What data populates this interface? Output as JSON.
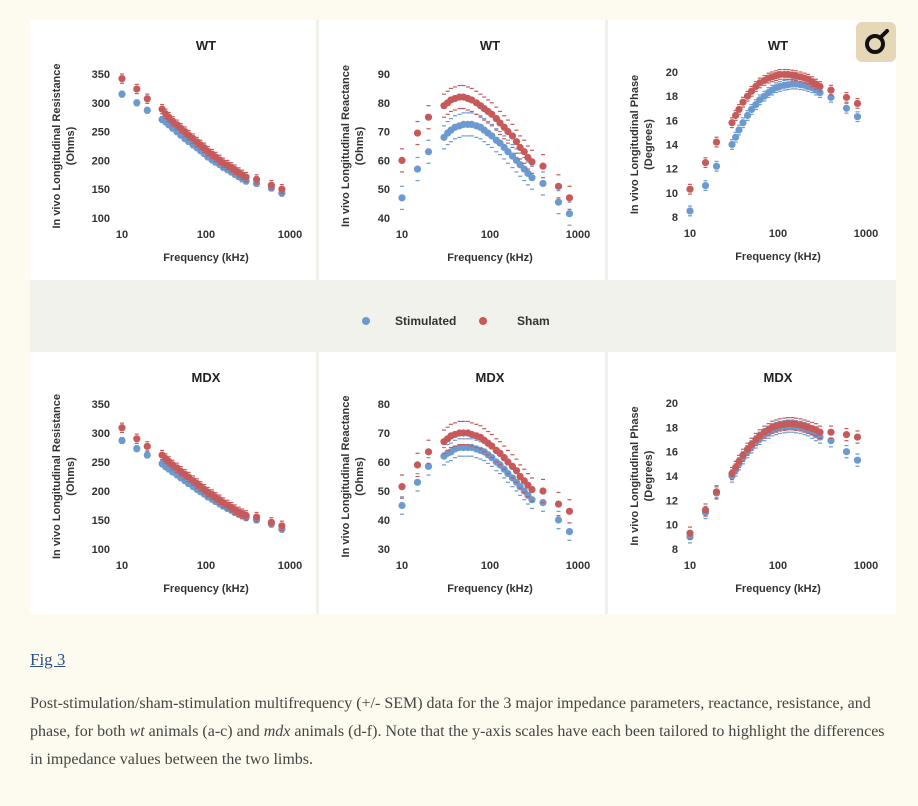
{
  "figure": {
    "legend": {
      "stimulated": "Stimulated",
      "sham": "Sham"
    },
    "colors": {
      "stimulated": "#6a9ad0",
      "sham": "#c65a5a"
    }
  },
  "badge": {
    "icon": "search-zoom-icon"
  },
  "caption": {
    "link": "Fig 3",
    "part1": "Post-stimulation/sham-stimulation multifrequency (+/- SEM) data for the 3 major impedance parameters, reactance, resistance, and phase, for both ",
    "wt": "wt",
    "part2": " animals (a-c) and ",
    "mdx": "mdx",
    "part3": " animals (d-f). Note that the y-axis scales have each been tailored to highlight the differences in impedance values between the two limbs."
  },
  "chart_data": [
    {
      "type": "scatter",
      "title": "WT",
      "xscale": "log",
      "xlim": [
        10,
        1000
      ],
      "xticks": [
        "10",
        "100",
        "1000"
      ],
      "xlabel": "Frequency (kHz)",
      "ylabel": "In vivo Longitudinal Resistance (Ohms)",
      "ylim": [
        100,
        350
      ],
      "yticks": [
        "100",
        "150",
        "200",
        "250",
        "300",
        "350"
      ],
      "x": [
        10,
        15,
        20,
        30,
        33,
        36,
        40,
        45,
        50,
        56,
        62,
        70,
        78,
        86,
        95,
        105,
        118,
        130,
        145,
        160,
        180,
        200,
        220,
        245,
        270,
        300,
        400,
        600,
        800
      ],
      "series": [
        {
          "name": "Stimulated",
          "error": 5,
          "values": [
            315,
            300,
            287,
            271,
            267,
            262,
            256,
            250,
            244,
            238,
            233,
            227,
            222,
            217,
            212,
            206,
            201,
            197,
            193,
            188,
            184,
            180,
            176,
            172,
            168,
            164,
            160,
            152,
            143
          ]
        },
        {
          "name": "Sham",
          "error": 8,
          "values": [
            342,
            324,
            307,
            289,
            281,
            275,
            268,
            262,
            256,
            250,
            244,
            238,
            232,
            227,
            222,
            216,
            211,
            206,
            201,
            196,
            192,
            188,
            184,
            179,
            175,
            171,
            167,
            157,
            150
          ]
        }
      ]
    },
    {
      "type": "scatter",
      "title": "WT",
      "xscale": "log",
      "xlim": [
        10,
        1000
      ],
      "xticks": [
        "10",
        "100",
        "1000"
      ],
      "xlabel": "Frequency (kHz)",
      "ylabel": "In vivo Longitudinal Reactance (Ohms)",
      "ylim": [
        40,
        90
      ],
      "yticks": [
        "40",
        "50",
        "60",
        "70",
        "80",
        "90"
      ],
      "x": [
        10,
        15,
        20,
        30,
        33,
        36,
        40,
        45,
        50,
        56,
        62,
        70,
        78,
        86,
        95,
        105,
        118,
        130,
        145,
        160,
        180,
        200,
        220,
        245,
        270,
        300,
        400,
        600,
        800
      ],
      "series": [
        {
          "name": "Stimulated",
          "error": 4,
          "values": [
            47,
            57,
            63,
            68,
            69.5,
            70.5,
            71.5,
            72,
            72.5,
            72.5,
            72.5,
            72,
            71.5,
            70.5,
            69.5,
            68.5,
            67,
            66,
            64.5,
            63,
            61.5,
            60,
            58.5,
            57,
            55.5,
            54,
            52,
            45.5,
            41.5
          ]
        },
        {
          "name": "Sham",
          "error": 4,
          "values": [
            60,
            69.5,
            75,
            79,
            80,
            81,
            81.5,
            82,
            82,
            81.5,
            81,
            80,
            79,
            78,
            77,
            76,
            74.5,
            73,
            71.5,
            70,
            68.5,
            66.5,
            64.5,
            63,
            61,
            59.5,
            58,
            51,
            47
          ]
        }
      ]
    },
    {
      "type": "scatter",
      "title": "WT",
      "xscale": "log",
      "xlim": [
        10,
        1000
      ],
      "xticks": [
        "10",
        "100",
        "1000"
      ],
      "xlabel": "Frequency (kHz)",
      "ylabel": "In vivo Longitudinal Phase (Degrees)",
      "ylim": [
        8,
        20
      ],
      "yticks": [
        "8",
        "10",
        "12",
        "14",
        "16",
        "18",
        "20"
      ],
      "x": [
        10,
        15,
        20,
        30,
        33,
        36,
        40,
        45,
        50,
        56,
        62,
        70,
        78,
        86,
        95,
        105,
        118,
        130,
        145,
        160,
        180,
        200,
        220,
        245,
        270,
        300,
        400,
        600,
        800
      ],
      "series": [
        {
          "name": "Stimulated",
          "error": 0.4,
          "values": [
            8.5,
            10.6,
            12.2,
            14.0,
            14.6,
            15.2,
            15.8,
            16.4,
            16.9,
            17.3,
            17.7,
            18.0,
            18.3,
            18.5,
            18.7,
            18.8,
            18.9,
            18.95,
            19.0,
            19.0,
            18.95,
            18.9,
            18.8,
            18.7,
            18.5,
            18.3,
            17.9,
            17.0,
            16.3
          ]
        },
        {
          "name": "Sham",
          "error": 0.4,
          "values": [
            10.3,
            12.5,
            14.2,
            15.8,
            16.4,
            16.9,
            17.5,
            18.0,
            18.4,
            18.8,
            19.1,
            19.3,
            19.5,
            19.6,
            19.7,
            19.8,
            19.8,
            19.8,
            19.75,
            19.7,
            19.6,
            19.5,
            19.4,
            19.2,
            19.0,
            18.8,
            18.5,
            17.9,
            17.4
          ]
        }
      ]
    },
    {
      "type": "scatter",
      "title": "MDX",
      "xscale": "log",
      "xlim": [
        10,
        1000
      ],
      "xticks": [
        "10",
        "100",
        "1000"
      ],
      "xlabel": "Frequency (kHz)",
      "ylabel": "In vivo Longitudinal Resistance (Ohms)",
      "ylim": [
        100,
        350
      ],
      "yticks": [
        "100",
        "150",
        "200",
        "250",
        "300",
        "350"
      ],
      "x": [
        10,
        15,
        20,
        30,
        33,
        36,
        40,
        45,
        50,
        56,
        62,
        70,
        78,
        86,
        95,
        105,
        118,
        130,
        145,
        160,
        180,
        200,
        220,
        245,
        270,
        300,
        400,
        600,
        800
      ],
      "series": [
        {
          "name": "Stimulated",
          "error": 5,
          "values": [
            287,
            273,
            262,
            247,
            242,
            238,
            233,
            228,
            223,
            218,
            213,
            208,
            203,
            199,
            195,
            190,
            186,
            182,
            178,
            174,
            170,
            167,
            163,
            160,
            157,
            154,
            150,
            143,
            134
          ]
        },
        {
          "name": "Sham",
          "error": 8,
          "values": [
            309,
            290,
            277,
            262,
            256,
            251,
            245,
            240,
            234,
            229,
            224,
            218,
            213,
            208,
            203,
            198,
            194,
            189,
            185,
            180,
            176,
            172,
            168,
            164,
            161,
            158,
            155,
            146,
            140
          ]
        }
      ]
    },
    {
      "type": "scatter",
      "title": "MDX",
      "xscale": "log",
      "xlim": [
        10,
        1000
      ],
      "xticks": [
        "10",
        "100",
        "1000"
      ],
      "xlabel": "Frequency (kHz)",
      "ylabel": "In vivo Longitudinal Reactance (Ohms)",
      "ylim": [
        30,
        80
      ],
      "yticks": [
        "30",
        "40",
        "50",
        "60",
        "70",
        "80"
      ],
      "x": [
        10,
        15,
        20,
        30,
        33,
        36,
        40,
        45,
        50,
        56,
        62,
        70,
        78,
        86,
        95,
        105,
        118,
        130,
        145,
        160,
        180,
        200,
        220,
        245,
        270,
        300,
        400,
        600,
        800
      ],
      "series": [
        {
          "name": "Stimulated",
          "error": 3,
          "values": [
            45,
            53,
            58.5,
            62,
            63,
            63.5,
            64.5,
            65,
            65,
            65,
            65,
            64.5,
            64,
            63.5,
            62.5,
            61.5,
            60,
            59,
            57.5,
            56,
            54.5,
            53,
            51.5,
            50,
            48.5,
            47,
            46,
            40,
            36
          ]
        },
        {
          "name": "Sham",
          "error": 4,
          "values": [
            51.5,
            59,
            63.5,
            67,
            68,
            69,
            69.5,
            70,
            70,
            70,
            69.5,
            69,
            68.5,
            67.5,
            66.5,
            65.5,
            64,
            63,
            61.5,
            60,
            58.5,
            57,
            55,
            53.5,
            52,
            50.5,
            50,
            45.5,
            43
          ]
        }
      ]
    },
    {
      "type": "scatter",
      "title": "MDX",
      "xscale": "log",
      "xlim": [
        10,
        1000
      ],
      "xticks": [
        "10",
        "100",
        "1000"
      ],
      "xlabel": "Frequency (kHz)",
      "ylabel": "In vivo Longitudinal Phase (Degrees)",
      "ylim": [
        8,
        20
      ],
      "yticks": [
        "8",
        "10",
        "12",
        "14",
        "16",
        "18",
        "20"
      ],
      "x": [
        10,
        15,
        20,
        30,
        33,
        36,
        40,
        45,
        50,
        56,
        62,
        70,
        78,
        86,
        95,
        105,
        118,
        130,
        145,
        160,
        180,
        200,
        220,
        245,
        270,
        300,
        400,
        600,
        800
      ],
      "series": [
        {
          "name": "Stimulated",
          "error": 0.5,
          "values": [
            9.0,
            11.0,
            12.6,
            14.0,
            14.5,
            15.0,
            15.5,
            16.0,
            16.4,
            16.8,
            17.1,
            17.4,
            17.6,
            17.8,
            17.9,
            18.0,
            18.05,
            18.1,
            18.1,
            18.05,
            18.0,
            17.9,
            17.8,
            17.6,
            17.4,
            17.2,
            16.9,
            16.0,
            15.3
          ]
        },
        {
          "name": "Sham",
          "error": 0.5,
          "values": [
            9.3,
            11.2,
            12.7,
            14.2,
            14.7,
            15.2,
            15.7,
            16.2,
            16.6,
            17.0,
            17.3,
            17.6,
            17.8,
            18.0,
            18.1,
            18.2,
            18.25,
            18.3,
            18.3,
            18.25,
            18.2,
            18.1,
            18.0,
            17.9,
            17.8,
            17.6,
            17.6,
            17.4,
            17.2
          ]
        }
      ]
    }
  ]
}
